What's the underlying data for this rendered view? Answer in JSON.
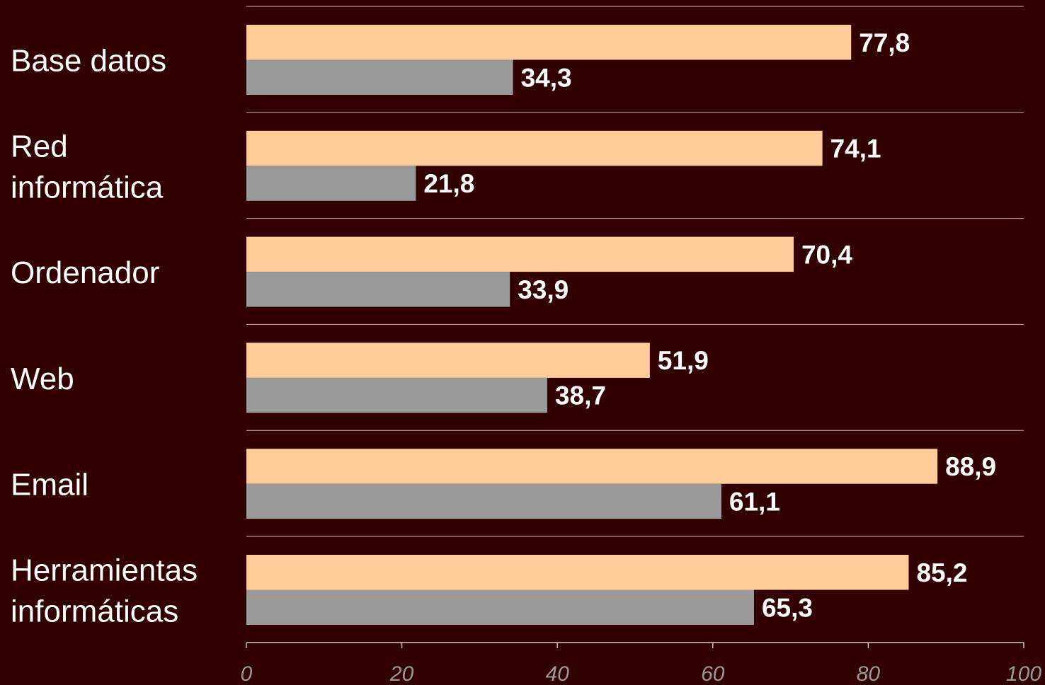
{
  "chart_data": {
    "type": "bar",
    "orientation": "horizontal",
    "categories": [
      [
        "Base datos"
      ],
      [
        "Red",
        "informática"
      ],
      [
        "Ordenador"
      ],
      [
        "Web"
      ],
      [
        "Email"
      ],
      [
        "Herramientas",
        "informáticas"
      ]
    ],
    "series": [
      {
        "values": [
          77.8,
          74.1,
          70.4,
          51.9,
          88.9,
          85.2
        ],
        "color": "#ffcc99"
      },
      {
        "values": [
          34.3,
          21.8,
          33.9,
          38.7,
          61.1,
          65.3
        ],
        "color": "#999999"
      }
    ],
    "value_labels": [
      [
        "77,8",
        "74,1",
        "70,4",
        "51,9",
        "88,9",
        "85,2"
      ],
      [
        "34,3",
        "21,8",
        "33,9",
        "38,7",
        "61,1",
        "65,3"
      ]
    ],
    "xlim": [
      0,
      100
    ],
    "xticks": [
      0,
      20,
      40,
      60,
      80,
      100
    ],
    "xtick_labels": [
      "0",
      "20",
      "40",
      "60",
      "80",
      "100"
    ],
    "title": "",
    "xlabel": "",
    "ylabel": "",
    "grid": "horizontal separators between categories",
    "legend": "none",
    "background": "#330000"
  }
}
